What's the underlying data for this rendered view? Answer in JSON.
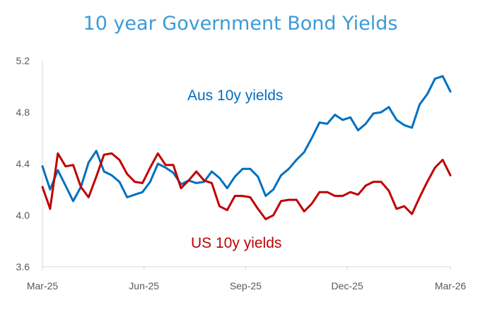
{
  "chart_data": {
    "type": "line",
    "title": "10 year Government Bond Yields",
    "xlabel": "",
    "ylabel": "",
    "x_unit": "weeks since Mar-25",
    "ylim": [
      3.6,
      5.2
    ],
    "yticks": [
      "3.6",
      "4.0",
      "4.4",
      "4.8",
      "5.2"
    ],
    "ytick_values": [
      3.6,
      4.0,
      4.4,
      4.8,
      5.2
    ],
    "xticks": [
      "Mar-25",
      "Jun-25",
      "Sep-25",
      "Dec-25",
      "Mar-26"
    ],
    "xtick_values": [
      0,
      13,
      26,
      39,
      52.2
    ],
    "xlim": [
      0,
      52.2
    ],
    "grid": false,
    "legend": "inline labels",
    "series": [
      {
        "name": "Aus 10y yields",
        "color": "#0070C0",
        "values": [
          4.38,
          4.2,
          4.35,
          4.23,
          4.11,
          4.22,
          4.41,
          4.5,
          4.34,
          4.31,
          4.26,
          4.14,
          4.16,
          4.18,
          4.26,
          4.4,
          4.37,
          4.33,
          4.24,
          4.27,
          4.25,
          4.26,
          4.34,
          4.29,
          4.21,
          4.3,
          4.36,
          4.36,
          4.3,
          4.15,
          4.2,
          4.31,
          4.36,
          4.43,
          4.49,
          4.6,
          4.72,
          4.71,
          4.78,
          4.74,
          4.76,
          4.66,
          4.71,
          4.79,
          4.8,
          4.84,
          4.74,
          4.7,
          4.68,
          4.86,
          4.94,
          5.06,
          5.08,
          4.96
        ]
      },
      {
        "name": "US 10y yields",
        "color": "#C00000",
        "values": [
          4.22,
          4.05,
          4.48,
          4.38,
          4.39,
          4.22,
          4.14,
          4.3,
          4.47,
          4.48,
          4.43,
          4.32,
          4.26,
          4.25,
          4.37,
          4.48,
          4.39,
          4.39,
          4.21,
          4.27,
          4.34,
          4.27,
          4.25,
          4.07,
          4.04,
          4.15,
          4.15,
          4.14,
          4.05,
          3.97,
          4.0,
          4.11,
          4.12,
          4.12,
          4.03,
          4.09,
          4.18,
          4.18,
          4.15,
          4.15,
          4.18,
          4.16,
          4.23,
          4.26,
          4.26,
          4.19,
          4.05,
          4.07,
          4.01,
          4.14,
          4.26,
          4.37,
          4.43,
          4.31
        ]
      }
    ],
    "title_color": "#3C9AD6"
  }
}
